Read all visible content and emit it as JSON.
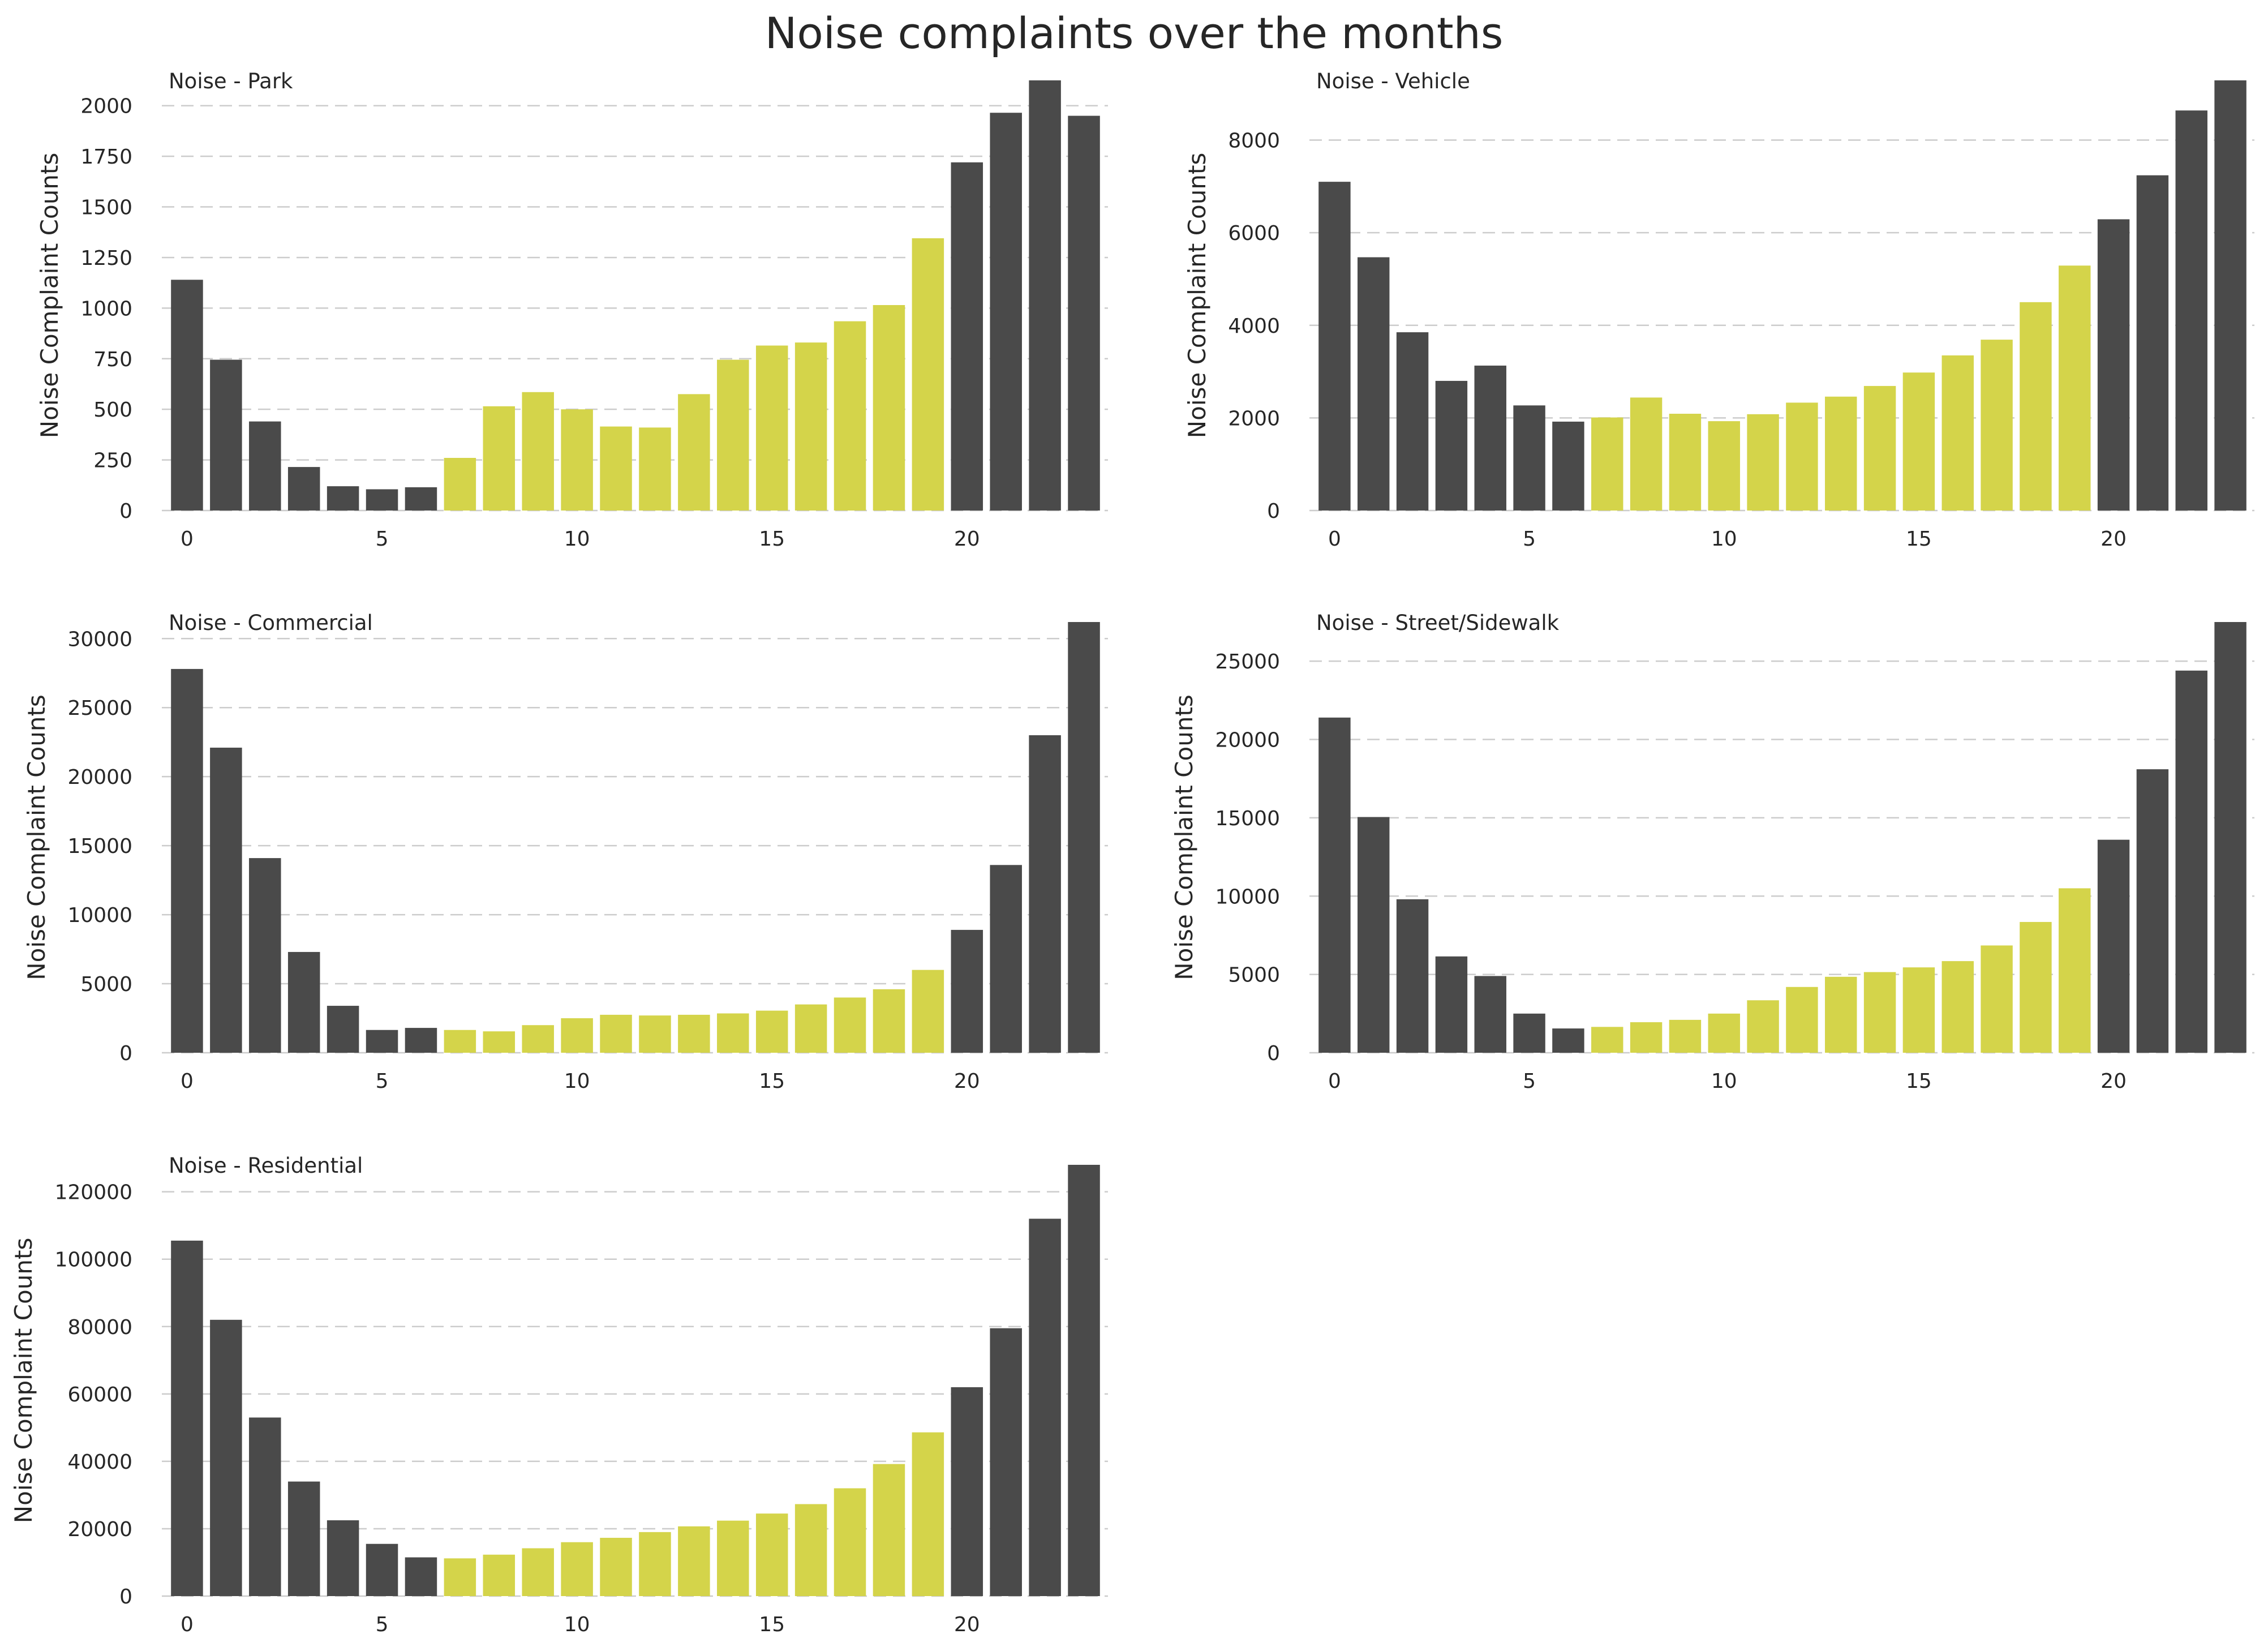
{
  "title": "Noise complaints over the months",
  "colors": {
    "dark": "#4a4a4a",
    "highlight": "#d4d44a"
  },
  "chart_data": [
    {
      "type": "bar",
      "title": "Noise - Park",
      "ylabel": "Noise Complaint Counts",
      "xlabel": "",
      "x": [
        0,
        1,
        2,
        3,
        4,
        5,
        6,
        7,
        8,
        9,
        10,
        11,
        12,
        13,
        14,
        15,
        16,
        17,
        18,
        19,
        20,
        21,
        22,
        23
      ],
      "values": [
        1140,
        745,
        440,
        215,
        120,
        105,
        115,
        260,
        515,
        585,
        500,
        415,
        410,
        575,
        745,
        815,
        830,
        935,
        1015,
        1345,
        1720,
        1965,
        2125,
        1950
      ],
      "highlight_range": [
        7,
        19
      ],
      "yticks": [
        0,
        250,
        500,
        750,
        1000,
        1250,
        1500,
        1750,
        2000
      ],
      "xticks": [
        0,
        5,
        10,
        15,
        20
      ],
      "ylim": [
        0,
        2125
      ],
      "grid": "y"
    },
    {
      "type": "bar",
      "title": "Noise - Vehicle",
      "ylabel": "Noise Complaint Counts",
      "xlabel": "",
      "x": [
        0,
        1,
        2,
        3,
        4,
        5,
        6,
        7,
        8,
        9,
        10,
        11,
        12,
        13,
        14,
        15,
        16,
        17,
        18,
        19,
        20,
        21,
        22,
        23
      ],
      "values": [
        7100,
        5470,
        3850,
        2800,
        3130,
        2270,
        1920,
        2010,
        2440,
        2090,
        1930,
        2080,
        2330,
        2460,
        2690,
        2980,
        3350,
        3690,
        4500,
        5290,
        6290,
        7240,
        8640,
        9290
      ],
      "highlight_range": [
        7,
        19
      ],
      "yticks": [
        0,
        2000,
        4000,
        6000,
        8000
      ],
      "xticks": [
        0,
        5,
        10,
        15,
        20
      ],
      "ylim": [
        0,
        9290
      ],
      "grid": "y"
    },
    {
      "type": "bar",
      "title": "Noise - Commercial",
      "ylabel": "Noise Complaint Counts",
      "xlabel": "",
      "x": [
        0,
        1,
        2,
        3,
        4,
        5,
        6,
        7,
        8,
        9,
        10,
        11,
        12,
        13,
        14,
        15,
        16,
        17,
        18,
        19,
        20,
        21,
        22,
        23
      ],
      "values": [
        27800,
        22100,
        14100,
        7300,
        3400,
        1650,
        1800,
        1650,
        1550,
        2000,
        2500,
        2750,
        2700,
        2750,
        2850,
        3050,
        3500,
        4000,
        4600,
        6000,
        8900,
        13600,
        23000,
        31200
      ],
      "highlight_range": [
        7,
        19
      ],
      "yticks": [
        0,
        5000,
        10000,
        15000,
        20000,
        25000,
        30000
      ],
      "xticks": [
        0,
        5,
        10,
        15,
        20
      ],
      "ylim": [
        0,
        31200
      ],
      "grid": "y"
    },
    {
      "type": "bar",
      "title": "Noise - Street/Sidewalk",
      "ylabel": "Noise Complaint Counts",
      "xlabel": "",
      "x": [
        0,
        1,
        2,
        3,
        4,
        5,
        6,
        7,
        8,
        9,
        10,
        11,
        12,
        13,
        14,
        15,
        16,
        17,
        18,
        19,
        20,
        21,
        22,
        23
      ],
      "values": [
        21400,
        15050,
        9800,
        6150,
        4900,
        2500,
        1550,
        1650,
        1950,
        2100,
        2500,
        3350,
        4200,
        4850,
        5150,
        5450,
        5850,
        6850,
        8350,
        10500,
        13600,
        18100,
        24400,
        27500
      ],
      "highlight_range": [
        7,
        19
      ],
      "yticks": [
        0,
        5000,
        10000,
        15000,
        20000,
        25000
      ],
      "xticks": [
        0,
        5,
        10,
        15,
        20
      ],
      "ylim": [
        0,
        27500
      ],
      "grid": "y"
    },
    {
      "type": "bar",
      "title": "Noise - Residential",
      "ylabel": "Noise Complaint Counts",
      "xlabel": "",
      "x": [
        0,
        1,
        2,
        3,
        4,
        5,
        6,
        7,
        8,
        9,
        10,
        11,
        12,
        13,
        14,
        15,
        16,
        17,
        18,
        19,
        20,
        21,
        22,
        23
      ],
      "values": [
        105500,
        82000,
        53000,
        34000,
        22500,
        15500,
        11500,
        11200,
        12300,
        14200,
        16000,
        17300,
        19000,
        20700,
        22400,
        24500,
        27300,
        32000,
        39200,
        48600,
        62000,
        79500,
        112000,
        128000
      ],
      "highlight_range": [
        7,
        19
      ],
      "yticks": [
        0,
        20000,
        40000,
        60000,
        80000,
        100000,
        120000
      ],
      "xticks": [
        0,
        5,
        10,
        15,
        20
      ],
      "ylim": [
        0,
        128000
      ],
      "grid": "y"
    }
  ]
}
